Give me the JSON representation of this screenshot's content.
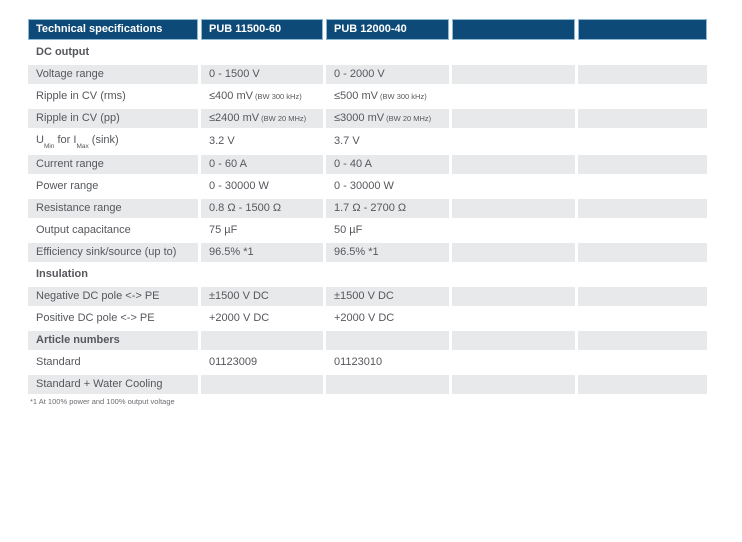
{
  "table": {
    "header": [
      "Technical specifications",
      "PUB 11500-60",
      "PUB 12000-40",
      "",
      ""
    ],
    "rows": [
      {
        "type": "section",
        "label": "DC output"
      },
      {
        "type": "data",
        "label": "Voltage range",
        "values": [
          "0 - 1500 V",
          "0 - 2000 V",
          "",
          ""
        ]
      },
      {
        "type": "data",
        "label": "Ripple in CV (rms)",
        "values": [
          {
            "main": "≤400 mV",
            "note": "(BW 300 kHz)"
          },
          {
            "main": "≤500 mV",
            "note": "(BW 300 kHz)"
          },
          "",
          ""
        ]
      },
      {
        "type": "data",
        "label": "Ripple in CV (pp)",
        "values": [
          {
            "main": "≤2400 mV",
            "note": "(BW 20 MHz)"
          },
          {
            "main": "≤3000 mV",
            "note": "(BW 20 MHz)"
          },
          "",
          ""
        ]
      },
      {
        "type": "data",
        "label_parts": [
          {
            "t": "U"
          },
          {
            "t": "Min",
            "sub": true
          },
          {
            "t": " for I"
          },
          {
            "t": "Max",
            "sub": true
          },
          {
            "t": " (sink)"
          }
        ],
        "values": [
          "3.2 V",
          "3.7 V",
          "",
          ""
        ]
      },
      {
        "type": "data",
        "label": "Current range",
        "values": [
          "0 - 60 A",
          "0 - 40 A",
          "",
          ""
        ]
      },
      {
        "type": "data",
        "label": "Power range",
        "values": [
          "0 - 30000 W",
          "0 - 30000 W",
          "",
          ""
        ]
      },
      {
        "type": "data",
        "label": "Resistance range",
        "values": [
          "0.8 Ω - 1500 Ω",
          "1.7 Ω - 2700 Ω",
          "",
          ""
        ]
      },
      {
        "type": "data",
        "label": "Output capacitance",
        "values": [
          "75 µF",
          "50 µF",
          "",
          ""
        ]
      },
      {
        "type": "data",
        "label": "Efficiency sink/source (up to)",
        "values": [
          "96.5% *1",
          "96.5% *1",
          "",
          ""
        ]
      },
      {
        "type": "section",
        "label": "Insulation"
      },
      {
        "type": "data",
        "label": "Negative DC pole <-> PE",
        "values": [
          "±1500 V DC",
          "±1500 V DC",
          "",
          ""
        ]
      },
      {
        "type": "data",
        "label": "Positive DC pole <-> PE",
        "values": [
          "+2000 V DC",
          "+2000 V DC",
          "",
          ""
        ]
      },
      {
        "type": "section",
        "label": "Article numbers"
      },
      {
        "type": "data",
        "label": "Standard",
        "values": [
          "01123009",
          "01123010",
          "",
          ""
        ]
      },
      {
        "type": "data",
        "label": "Standard + Water Cooling",
        "values": [
          "",
          "",
          "",
          ""
        ]
      }
    ]
  },
  "footnote": "*1 At 100% power and 100% output voltage",
  "colors": {
    "header_bg": "#0d4a78",
    "header_border": "#8fb8d2",
    "section_text": "#0a5ca8",
    "row_shade": "#e8e9eb",
    "body_text": "#55575c"
  }
}
